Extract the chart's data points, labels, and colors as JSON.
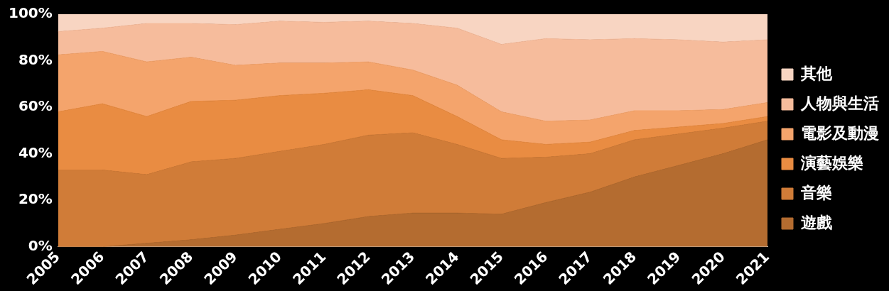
{
  "chart_data": {
    "type": "area",
    "stacked": true,
    "categories": [
      "2005",
      "2006",
      "2007",
      "2008",
      "2009",
      "2010",
      "2011",
      "2012",
      "2013",
      "2014",
      "2015",
      "2016",
      "2017",
      "2018",
      "2019",
      "2020",
      "2021"
    ],
    "series": [
      {
        "name": "遊戲",
        "color": "#b46c30",
        "values": [
          0,
          0,
          1.5,
          3,
          5,
          7.5,
          10,
          13,
          14.5,
          14.5,
          14,
          19,
          23.5,
          30,
          35,
          40,
          46
        ]
      },
      {
        "name": "音樂",
        "color": "#d07c38",
        "values": [
          33,
          33,
          29.5,
          33.5,
          33,
          33.5,
          34,
          35,
          34.5,
          29.5,
          24,
          19.5,
          16.5,
          16,
          13.5,
          11,
          8
        ]
      },
      {
        "name": "演藝娛樂",
        "color": "#e98c42",
        "values": [
          25,
          28.5,
          25,
          26,
          25,
          24,
          22,
          19.5,
          16,
          12,
          8,
          5.5,
          5,
          4,
          3,
          2,
          2
        ]
      },
      {
        "name": "電影及動漫",
        "color": "#f4a46c",
        "values": [
          24.5,
          22.5,
          23.5,
          19,
          15,
          14,
          13,
          12,
          11,
          13.5,
          12,
          10,
          9.5,
          8.5,
          7,
          6,
          6
        ]
      },
      {
        "name": "人物與生活",
        "color": "#f6bc9c",
        "values": [
          10,
          10,
          16.5,
          14.5,
          17.5,
          18,
          17.5,
          17.5,
          20,
          24.5,
          29,
          35.5,
          34.5,
          31,
          30.5,
          29,
          27
        ]
      },
      {
        "name": "其他",
        "color": "#f8d5c2",
        "values": [
          7.5,
          6,
          4,
          4,
          4.5,
          3,
          3.5,
          3,
          4,
          6,
          13,
          10.5,
          11,
          10.5,
          11,
          12,
          11
        ]
      }
    ],
    "ylim": [
      0,
      100
    ],
    "yticks": [
      {
        "value": 0,
        "label": "0%"
      },
      {
        "value": 20,
        "label": "20%"
      },
      {
        "value": 40,
        "label": "40%"
      },
      {
        "value": 60,
        "label": "60%"
      },
      {
        "value": 80,
        "label": "80%"
      },
      {
        "value": 100,
        "label": "100%"
      }
    ],
    "legend": "right"
  }
}
